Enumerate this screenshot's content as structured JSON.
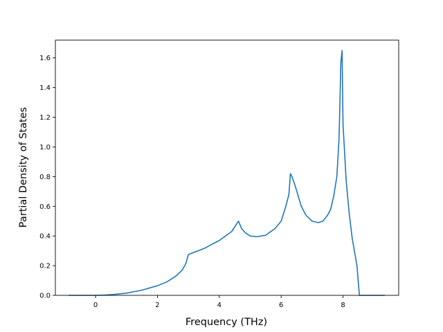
{
  "chart_data": {
    "type": "line",
    "title": "",
    "xlabel": "Frequency (THz)",
    "ylabel": "Partial Density of States",
    "xlim": [
      -1.3,
      9.8
    ],
    "ylim": [
      0.0,
      1.72
    ],
    "xticks": [
      0,
      2,
      4,
      6,
      8
    ],
    "yticks": [
      0.0,
      0.2,
      0.4,
      0.6,
      0.8,
      1.0,
      1.2,
      1.4,
      1.6
    ],
    "xtick_labels": [
      "0",
      "2",
      "4",
      "6",
      "8"
    ],
    "ytick_labels": [
      "0.0",
      "0.2",
      "0.4",
      "0.6",
      "0.8",
      "1.0",
      "1.2",
      "1.4",
      "1.6"
    ],
    "grid": false,
    "series": [
      {
        "color": "#1f77b4",
        "x": [
          -0.87,
          -0.5,
          0.0,
          0.3,
          0.6,
          1.0,
          1.5,
          2.0,
          2.3,
          2.6,
          2.8,
          2.92,
          3.0,
          3.5,
          4.0,
          4.4,
          4.62,
          4.72,
          4.85,
          5.0,
          5.2,
          5.5,
          5.8,
          6.0,
          6.15,
          6.25,
          6.3,
          6.35,
          6.45,
          6.55,
          6.65,
          6.8,
          7.0,
          7.2,
          7.35,
          7.5,
          7.6,
          7.7,
          7.8,
          7.87,
          7.9,
          7.93,
          7.97,
          8.0,
          8.1,
          8.2,
          8.3,
          8.45,
          8.53,
          8.6,
          9.0,
          9.35
        ],
        "y": [
          0.0,
          0.0,
          0.0,
          0.002,
          0.006,
          0.015,
          0.035,
          0.065,
          0.09,
          0.13,
          0.17,
          0.215,
          0.275,
          0.315,
          0.37,
          0.43,
          0.5,
          0.45,
          0.42,
          0.4,
          0.395,
          0.405,
          0.45,
          0.5,
          0.6,
          0.68,
          0.82,
          0.8,
          0.74,
          0.67,
          0.6,
          0.54,
          0.5,
          0.49,
          0.5,
          0.54,
          0.58,
          0.67,
          0.8,
          1.05,
          1.3,
          1.57,
          1.65,
          1.15,
          0.78,
          0.55,
          0.38,
          0.2,
          0.0,
          0.0,
          0.0,
          0.0
        ]
      }
    ]
  }
}
